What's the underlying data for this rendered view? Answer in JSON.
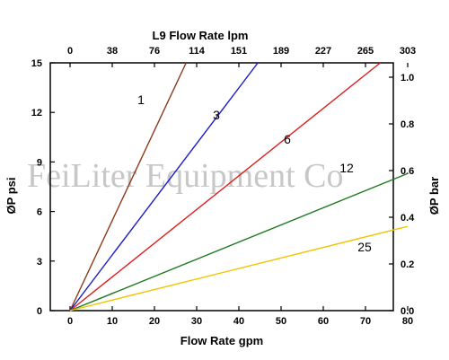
{
  "chart_data": {
    "type": "line",
    "title": "L9 Flow Rate lpm",
    "xlabel": "Flow Rate gpm",
    "ylabel_left": "ØP psi",
    "ylabel_right": "ØP bar",
    "xlim": [
      0,
      80
    ],
    "ylim_left": [
      0,
      15
    ],
    "ylim_right": [
      0,
      1.0
    ],
    "x_ticks": [
      "0",
      "10",
      "20",
      "30",
      "40",
      "50",
      "60",
      "70",
      "80"
    ],
    "top_ticks": [
      "0",
      "38",
      "76",
      "114",
      "151",
      "189",
      "227",
      "265",
      "303"
    ],
    "y_left_ticks": [
      "0",
      "3",
      "6",
      "9",
      "12",
      "15"
    ],
    "y_right_ticks": [
      "0.0",
      "0.2",
      "0.4",
      "0.6",
      "0.8",
      "1.0"
    ],
    "grid": false,
    "series": [
      {
        "name": "1",
        "color": "#8b3a1a",
        "x": [
          0,
          27.5
        ],
        "y": [
          0,
          15
        ]
      },
      {
        "name": "3",
        "color": "#1a1acc",
        "x": [
          0,
          44.5
        ],
        "y": [
          0,
          15
        ]
      },
      {
        "name": "6",
        "color": "#dd1c1c",
        "x": [
          0,
          73.5
        ],
        "y": [
          0,
          15
        ]
      },
      {
        "name": "12",
        "color": "#1f7a1f",
        "x": [
          0,
          80
        ],
        "y": [
          0,
          8.3
        ]
      },
      {
        "name": "25",
        "color": "#f0c400",
        "x": [
          0,
          80
        ],
        "y": [
          0,
          5.1
        ]
      }
    ]
  },
  "watermark": "FeiLiter Equipment Co"
}
